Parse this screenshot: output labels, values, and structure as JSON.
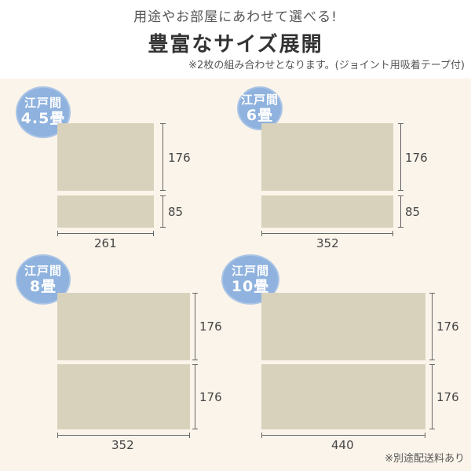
{
  "header": {
    "subtitle": "用途やお部屋にあわせて選べる!",
    "title": "豊富なサイズ展開",
    "note": "※2枚の組み合わせとなります。(ジョイント用吸着テープ付)"
  },
  "layouts": [
    {
      "label_line1": "江戸間",
      "label_line2": "4.5畳",
      "top_dim": "176",
      "bottom_dim": "85",
      "width_dim": "261"
    },
    {
      "label_line1": "江戸間",
      "label_line2": "6畳",
      "top_dim": "176",
      "bottom_dim": "85",
      "width_dim": "352"
    },
    {
      "label_line1": "江戸間",
      "label_line2": "8畳",
      "top_dim": "176",
      "bottom_dim": "176",
      "width_dim": "352"
    },
    {
      "label_line1": "江戸間",
      "label_line2": "10畳",
      "top_dim": "176",
      "bottom_dim": "176",
      "width_dim": "440"
    }
  ],
  "footer": {
    "note": "※別途配送料あり"
  },
  "colors": {
    "background": "#fbf4ea",
    "mat": "#d8d2bc",
    "bubble": "#8fb2de"
  }
}
